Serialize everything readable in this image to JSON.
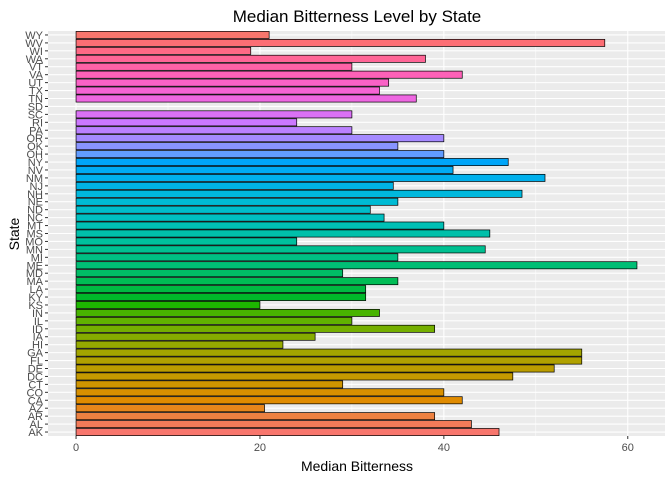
{
  "chart_data": {
    "type": "bar",
    "orientation": "horizontal",
    "title": "Median Bitterness Level by State",
    "xlabel": "Median Bitterness",
    "ylabel": "State",
    "xlim": [
      -3.05,
      64.05
    ],
    "x_ticks": [
      0,
      20,
      40,
      60
    ],
    "grid": true,
    "legend": "none",
    "categories": [
      "AK",
      "AL",
      "AR",
      "AZ",
      "CA",
      "CO",
      "CT",
      "DC",
      "DE",
      "FL",
      "GA",
      "HI",
      "IA",
      "ID",
      "IL",
      "IN",
      "KS",
      "KY",
      "LA",
      "MA",
      "MD",
      "ME",
      "MI",
      "MN",
      "MO",
      "MS",
      "MT",
      "NC",
      "ND",
      "NE",
      "NH",
      "NJ",
      "NM",
      "NV",
      "NY",
      "OH",
      "OK",
      "OR",
      "PA",
      "RI",
      "SC",
      "SD",
      "TN",
      "TX",
      "UT",
      "VA",
      "VT",
      "WA",
      "WI",
      "WV",
      "WY"
    ],
    "values": [
      46,
      43,
      39,
      20.5,
      42,
      40,
      29,
      47.5,
      52,
      55,
      55,
      22.5,
      26,
      39,
      30,
      33,
      20,
      31.5,
      31.5,
      35,
      29,
      61,
      35,
      44.5,
      24,
      45,
      40,
      33.5,
      32,
      35,
      48.5,
      34.5,
      51,
      41,
      47,
      40,
      35,
      40,
      30,
      24,
      30,
      null,
      37,
      33,
      34,
      42,
      30,
      38,
      19,
      57.5,
      21
    ],
    "colors": [
      "#F8766D",
      "#F37B59",
      "#ED8141",
      "#E7861B",
      "#E08B00",
      "#D89000",
      "#CF9400",
      "#C59900",
      "#BB9D00",
      "#B0A100",
      "#A3A500",
      "#95A900",
      "#86AC00",
      "#75AF00",
      "#61B200",
      "#48B400",
      "#1DB700",
      "#00B92A",
      "#00BA42",
      "#00BC55",
      "#00BD66",
      "#00BE75",
      "#00BF83",
      "#00C091",
      "#00C09D",
      "#00C0AA",
      "#00C0B5",
      "#00BFC0",
      "#00BDCA",
      "#00BBD4",
      "#00B8DD",
      "#00B4E5",
      "#00B0EC",
      "#00ABF3",
      "#00A5F8",
      "#619CFF",
      "#8894FF",
      "#A58AFF",
      "#BB81FF",
      "#CC78FF",
      "#DA71F5",
      "#E56BEC",
      "#EE67E1",
      "#F564D4",
      "#FA62C6",
      "#FD61B7",
      "#FF62A7",
      "#FF6596",
      "#FF6985",
      "#FC6E74",
      "#F8766D"
    ]
  }
}
